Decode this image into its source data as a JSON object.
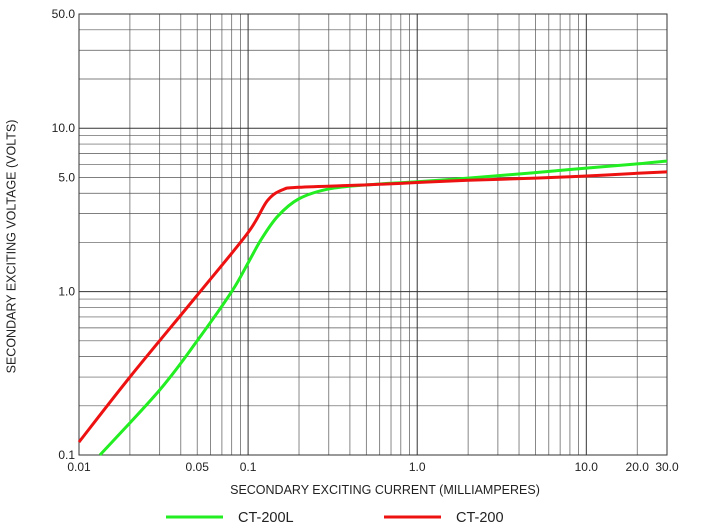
{
  "chart_data": {
    "type": "line",
    "x_scale": "log",
    "y_scale": "log",
    "xlim": [
      0.01,
      30.0
    ],
    "ylim": [
      0.1,
      50.0
    ],
    "xlabel": "SECONDARY EXCITING CURRENT (MILLIAMPERES)",
    "ylabel": "SECONDARY EXCITING VOLTAGE (VOLTS)",
    "x_ticks": [
      {
        "value": 0.01,
        "label": "0.01"
      },
      {
        "value": 0.05,
        "label": "0.05"
      },
      {
        "value": 0.1,
        "label": "0.1"
      },
      {
        "value": 1.0,
        "label": "1.0"
      },
      {
        "value": 10.0,
        "label": "10.0"
      },
      {
        "value": 20.0,
        "label": "20.0"
      },
      {
        "value": 30.0,
        "label": "30.0"
      }
    ],
    "y_ticks": [
      {
        "value": 0.1,
        "label": "0.1"
      },
      {
        "value": 1.0,
        "label": "1.0"
      },
      {
        "value": 5.0,
        "label": "5.0"
      },
      {
        "value": 10.0,
        "label": "10.0"
      },
      {
        "value": 50.0,
        "label": "50.0"
      }
    ],
    "x_grid": [
      0.01,
      0.02,
      0.03,
      0.04,
      0.05,
      0.06,
      0.07,
      0.08,
      0.09,
      0.1,
      0.2,
      0.3,
      0.4,
      0.5,
      0.6,
      0.7,
      0.8,
      0.9,
      1,
      2,
      3,
      4,
      5,
      6,
      7,
      8,
      9,
      10,
      20,
      30
    ],
    "y_grid": [
      0.1,
      0.2,
      0.3,
      0.4,
      0.5,
      0.6,
      0.7,
      0.8,
      0.9,
      1,
      2,
      3,
      4,
      5,
      6,
      7,
      8,
      9,
      10,
      20,
      30,
      40,
      50
    ],
    "grid": true,
    "legend_position": "bottom",
    "series": [
      {
        "name": "CT-200L",
        "color": "#22ee22",
        "points": [
          [
            0.0133,
            0.1
          ],
          [
            0.03,
            0.25
          ],
          [
            0.05,
            0.5
          ],
          [
            0.08,
            1.0
          ],
          [
            0.1,
            1.5
          ],
          [
            0.12,
            2.1
          ],
          [
            0.15,
            2.9
          ],
          [
            0.2,
            3.7
          ],
          [
            0.3,
            4.25
          ],
          [
            0.5,
            4.5
          ],
          [
            1.0,
            4.7
          ],
          [
            2.0,
            4.95
          ],
          [
            5.0,
            5.35
          ],
          [
            10.0,
            5.7
          ],
          [
            20.0,
            6.05
          ],
          [
            30.0,
            6.3
          ]
        ]
      },
      {
        "name": "CT-200",
        "color": "#ee1111",
        "points": [
          [
            0.01,
            0.12
          ],
          [
            0.02,
            0.3
          ],
          [
            0.05,
            0.95
          ],
          [
            0.1,
            2.3
          ],
          [
            0.13,
            3.6
          ],
          [
            0.16,
            4.2
          ],
          [
            0.2,
            4.35
          ],
          [
            0.5,
            4.5
          ],
          [
            1.0,
            4.65
          ],
          [
            2.0,
            4.8
          ],
          [
            5.0,
            4.95
          ],
          [
            10.0,
            5.1
          ],
          [
            20.0,
            5.3
          ],
          [
            30.0,
            5.4
          ]
        ]
      }
    ]
  }
}
